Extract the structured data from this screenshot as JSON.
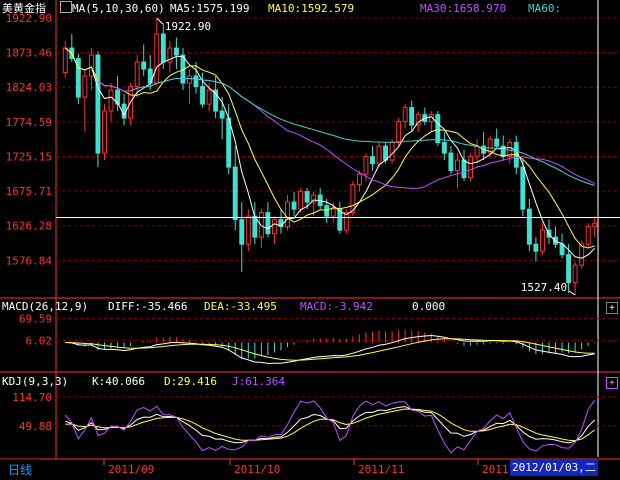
{
  "instrument": "美黄金指",
  "timeframe": "日线",
  "colors": {
    "up": "#ff3030",
    "down": "#40e0d0",
    "ma5": "#ffffff",
    "ma10": "#ffff40",
    "ma30": "#c050ff",
    "ma60": "#40d0d0",
    "grid": "#800000",
    "axis": "#ff3030"
  },
  "price_panel": {
    "ma_header": "MA(5,10,30,60)",
    "ma5": "MA5:1575.199",
    "ma10": "MA10:1592.579",
    "ma30": "MA30:1658.970",
    "ma60": "MA60:",
    "y_ticks": [
      "1922.90",
      "1873.46",
      "1824.03",
      "1774.59",
      "1725.15",
      "1675.71",
      "1626.28",
      "1576.84"
    ],
    "max_label": "1922.90",
    "min_label": "1527.40"
  },
  "macd_panel": {
    "header": "MACD(26,12,9)",
    "diff": "DIFF:-35.466",
    "dea": "DEA:-33.495",
    "macd": "MACD:-3.942",
    "zero": "0.000",
    "y_ticks": [
      "69.59",
      "6.02"
    ],
    "toggle": "+"
  },
  "kdj_panel": {
    "header": "KDJ(9,3,3)",
    "k": "K:40.066",
    "d": "D:29.416",
    "j": "J:61.364",
    "y_ticks": [
      "114.70",
      "49.88"
    ],
    "toggle": "+"
  },
  "x_axis": {
    "labels": [
      "2011/09",
      "2011/10",
      "2011/11",
      "2011"
    ],
    "selected_date": "2012/01/03,二"
  },
  "chart_data": {
    "type": "candlestick",
    "title": "美黄金指",
    "ylim": [
      1527.4,
      1922.9
    ],
    "ohlc": [
      [
        1845,
        1890,
        1838,
        1880
      ],
      [
        1880,
        1900,
        1860,
        1865
      ],
      [
        1865,
        1872,
        1800,
        1810
      ],
      [
        1810,
        1850,
        1760,
        1840
      ],
      [
        1840,
        1880,
        1820,
        1870
      ],
      [
        1870,
        1875,
        1710,
        1730
      ],
      [
        1730,
        1800,
        1720,
        1790
      ],
      [
        1790,
        1830,
        1775,
        1820
      ],
      [
        1820,
        1840,
        1790,
        1800
      ],
      [
        1800,
        1815,
        1770,
        1780
      ],
      [
        1780,
        1830,
        1770,
        1825
      ],
      [
        1825,
        1870,
        1810,
        1860
      ],
      [
        1860,
        1885,
        1840,
        1850
      ],
      [
        1850,
        1870,
        1820,
        1830
      ],
      [
        1830,
        1922.9,
        1825,
        1900
      ],
      [
        1900,
        1915,
        1850,
        1860
      ],
      [
        1860,
        1890,
        1845,
        1880
      ],
      [
        1880,
        1895,
        1850,
        1870
      ],
      [
        1870,
        1880,
        1820,
        1830
      ],
      [
        1830,
        1850,
        1800,
        1840
      ],
      [
        1840,
        1860,
        1815,
        1825
      ],
      [
        1825,
        1845,
        1795,
        1800
      ],
      [
        1800,
        1830,
        1790,
        1820
      ],
      [
        1820,
        1840,
        1780,
        1790
      ],
      [
        1790,
        1810,
        1750,
        1780
      ],
      [
        1780,
        1800,
        1700,
        1710
      ],
      [
        1710,
        1740,
        1620,
        1635
      ],
      [
        1635,
        1660,
        1560,
        1600
      ],
      [
        1600,
        1650,
        1590,
        1640
      ],
      [
        1640,
        1660,
        1600,
        1610
      ],
      [
        1610,
        1650,
        1595,
        1645
      ],
      [
        1645,
        1660,
        1610,
        1615
      ],
      [
        1615,
        1640,
        1600,
        1635
      ],
      [
        1635,
        1650,
        1615,
        1625
      ],
      [
        1625,
        1670,
        1620,
        1660
      ],
      [
        1660,
        1675,
        1640,
        1650
      ],
      [
        1650,
        1680,
        1645,
        1675
      ],
      [
        1675,
        1680,
        1650,
        1660
      ],
      [
        1660,
        1675,
        1640,
        1670
      ],
      [
        1670,
        1680,
        1650,
        1655
      ],
      [
        1655,
        1665,
        1630,
        1640
      ],
      [
        1640,
        1660,
        1630,
        1650
      ],
      [
        1650,
        1660,
        1615,
        1620
      ],
      [
        1620,
        1650,
        1615,
        1645
      ],
      [
        1645,
        1690,
        1640,
        1685
      ],
      [
        1685,
        1705,
        1675,
        1700
      ],
      [
        1700,
        1730,
        1690,
        1725
      ],
      [
        1725,
        1740,
        1705,
        1715
      ],
      [
        1715,
        1745,
        1710,
        1740
      ],
      [
        1740,
        1745,
        1715,
        1720
      ],
      [
        1720,
        1750,
        1715,
        1745
      ],
      [
        1745,
        1780,
        1740,
        1775
      ],
      [
        1775,
        1800,
        1765,
        1795
      ],
      [
        1795,
        1805,
        1760,
        1770
      ],
      [
        1770,
        1790,
        1760,
        1785
      ],
      [
        1785,
        1795,
        1770,
        1775
      ],
      [
        1775,
        1790,
        1760,
        1785
      ],
      [
        1785,
        1790,
        1740,
        1745
      ],
      [
        1745,
        1760,
        1720,
        1730
      ],
      [
        1730,
        1740,
        1700,
        1705
      ],
      [
        1705,
        1730,
        1680,
        1720
      ],
      [
        1720,
        1735,
        1690,
        1695
      ],
      [
        1695,
        1730,
        1690,
        1725
      ],
      [
        1725,
        1750,
        1715,
        1740
      ],
      [
        1740,
        1760,
        1720,
        1730
      ],
      [
        1730,
        1755,
        1725,
        1750
      ],
      [
        1750,
        1765,
        1735,
        1740
      ],
      [
        1740,
        1755,
        1720,
        1725
      ],
      [
        1725,
        1750,
        1715,
        1745
      ],
      [
        1745,
        1755,
        1700,
        1710
      ],
      [
        1710,
        1720,
        1640,
        1650
      ],
      [
        1650,
        1665,
        1590,
        1600
      ],
      [
        1600,
        1610,
        1575,
        1590
      ],
      [
        1590,
        1630,
        1585,
        1620
      ],
      [
        1620,
        1635,
        1600,
        1610
      ],
      [
        1610,
        1625,
        1595,
        1600
      ],
      [
        1600,
        1615,
        1580,
        1585
      ],
      [
        1585,
        1600,
        1530,
        1545
      ],
      [
        1545,
        1575,
        1527.4,
        1570
      ],
      [
        1570,
        1605,
        1565,
        1600
      ],
      [
        1600,
        1630,
        1595,
        1625
      ],
      [
        1625,
        1640,
        1610,
        1630
      ]
    ],
    "ma": [
      {
        "name": "MA5",
        "key": "ma5"
      },
      {
        "name": "MA10",
        "key": "ma10"
      },
      {
        "name": "MA30",
        "key": "ma30"
      },
      {
        "name": "MA60",
        "key": "ma60"
      }
    ],
    "macd": {
      "ylim": [
        -80,
        80
      ]
    },
    "kdj": {
      "ylim": [
        -20,
        130
      ]
    }
  }
}
